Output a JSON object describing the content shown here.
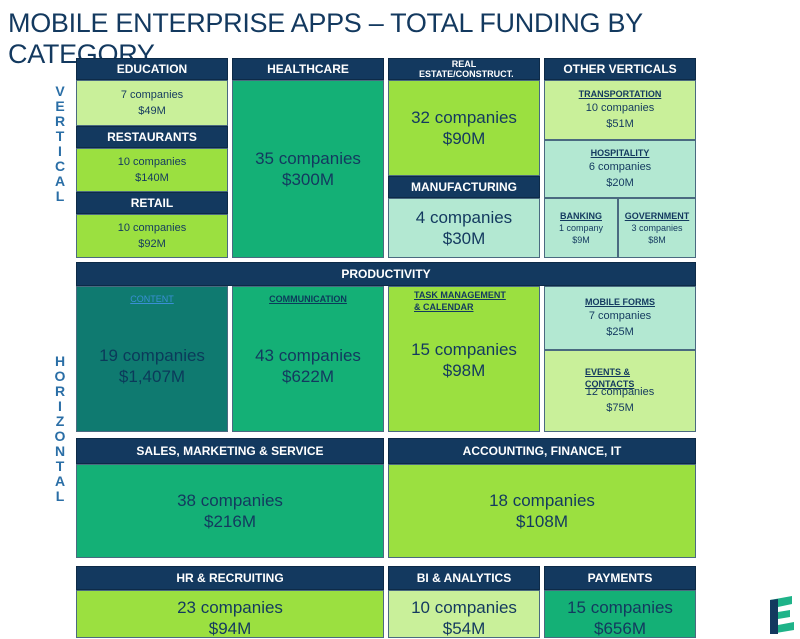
{
  "title": "MOBILE ENTERPRISE APPS – TOTAL FUNDING BY CATEGORY",
  "side_labels": {
    "vertical": "VERTICAL",
    "horizontal": "HORIZONTAL"
  },
  "education": {
    "header": "EDUCATION",
    "companies": "7 companies",
    "funding": "$49M"
  },
  "restaurants": {
    "header": "RESTAURANTS",
    "companies": "10 companies",
    "funding": "$140M"
  },
  "retail": {
    "header": "RETAIL",
    "companies": "10 companies",
    "funding": "$92M"
  },
  "healthcare": {
    "header": "HEALTHCARE",
    "companies": "35 companies",
    "funding": "$300M"
  },
  "real_estate": {
    "header": "REAL ESTATE/CONSTRUCT.",
    "companies": "32 companies",
    "funding": "$90M"
  },
  "manufacturing": {
    "header": "MANUFACTURING",
    "companies": "4 companies",
    "funding": "$30M"
  },
  "other_verticals": {
    "header": "OTHER VERTICALS"
  },
  "transportation": {
    "label": "TRANSPORTATION",
    "companies": "10 companies",
    "funding": "$51M"
  },
  "hospitality": {
    "label": "HOSPITALITY",
    "companies": "6 companies",
    "funding": "$20M"
  },
  "banking": {
    "label": "BANKING",
    "companies": "1 company",
    "funding": "$9M"
  },
  "government": {
    "label": "GOVERNMENT",
    "companies": "3 companies",
    "funding": "$8M"
  },
  "productivity": {
    "header": "PRODUCTIVITY"
  },
  "content": {
    "label": "CONTENT",
    "companies": "19 companies",
    "funding": "$1,407M"
  },
  "communication": {
    "label": "COMMUNICATION",
    "companies": "43 companies",
    "funding": "$622M"
  },
  "task_management": {
    "label": "TASK MANAGEMENT & CALENDAR",
    "companies": "15 companies",
    "funding": "$98M"
  },
  "mobile_forms": {
    "label": "MOBILE FORMS",
    "companies": "7 companies",
    "funding": "$25M"
  },
  "events_contacts": {
    "label": "EVENTS & CONTACTS",
    "companies": "12 companies",
    "funding": "$75M"
  },
  "sales_marketing": {
    "header": "SALES, MARKETING & SERVICE",
    "companies": "38 companies",
    "funding": "$216M"
  },
  "accounting": {
    "header": "ACCOUNTING, FINANCE, IT",
    "companies": "18 companies",
    "funding": "$108M"
  },
  "hr_recruiting": {
    "header": "HR & RECRUITING",
    "companies": "23 companies",
    "funding": "$94M"
  },
  "bi_analytics": {
    "header": "BI & ANALYTICS",
    "companies": "10 companies",
    "funding": "$54M"
  },
  "payments": {
    "header": "PAYMENTS",
    "companies": "15 companies",
    "funding": "$656M"
  },
  "colors": {
    "navy": "#13395f",
    "lime": "#9be040",
    "pale_lime": "#c9f09a",
    "green": "#14b076",
    "teal": "#0f7a70",
    "mint": "#b3e8d2",
    "side_text": "#2a6ea6"
  }
}
